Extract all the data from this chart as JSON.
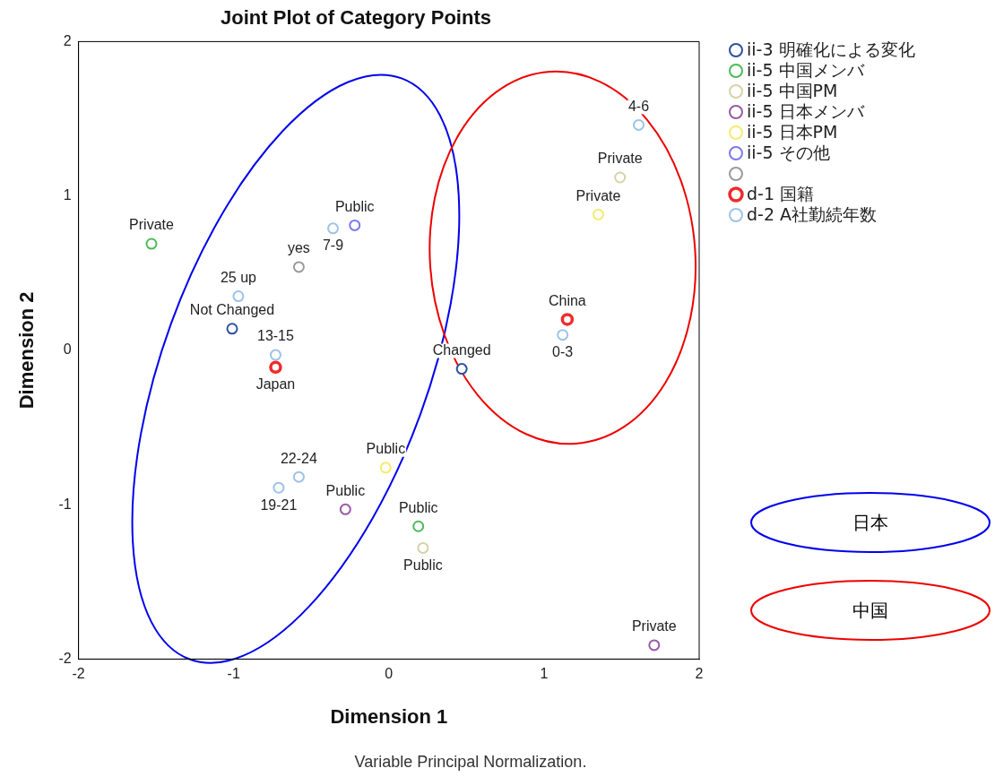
{
  "chart_data": {
    "type": "scatter",
    "title": "Joint Plot of Category Points",
    "xlabel": "Dimension 1",
    "ylabel": "Dimension 2",
    "xlim": [
      -2,
      2
    ],
    "xticks": [
      -2,
      -1,
      0,
      1,
      2
    ],
    "ylim": [
      -2,
      2
    ],
    "yticks": [
      -2,
      -1,
      0,
      1,
      2
    ],
    "grid": false,
    "legend": "top right",
    "marker": "circle",
    "series": [
      {
        "name": "ii-3 明確化による変化",
        "color": "#2e4fa3",
        "x": [
          -1.01,
          0.47
        ],
        "values": [
          0.14,
          -0.12
        ]
      },
      {
        "name": "ii-5 中国メンバ",
        "color": "#4cbb5a",
        "x": [
          -1.53,
          0.19
        ],
        "values": [
          0.69,
          -1.14
        ]
      },
      {
        "name": "ii-5 中国PM",
        "color": "#d6d2a8",
        "x": [
          1.49,
          0.22
        ],
        "values": [
          1.12,
          -1.28
        ]
      },
      {
        "name": "ii-5 日本メンバ",
        "color": "#9a5aa6",
        "x": [
          -0.28,
          1.71
        ],
        "values": [
          -1.03,
          -1.91
        ]
      },
      {
        "name": "ii-5 日本PM",
        "color": "#f2ec70",
        "x": [
          1.35,
          -0.02
        ],
        "values": [
          0.88,
          -0.76
        ]
      },
      {
        "name": "ii-5 その他",
        "color": "#7a7af0",
        "x": [
          -0.22
        ],
        "values": [
          0.81
        ]
      },
      {
        "color": "#9a9a9a",
        "x": [
          -0.58
        ],
        "values": [
          0.54
        ]
      },
      {
        "name": "d-1 国籍",
        "color": "#ee2b2b",
        "x": [
          -0.73,
          1.15
        ],
        "values": [
          -0.11,
          0.2
        ]
      },
      {
        "name": "d-2 A社勤続年数",
        "color": "#9ec3e6",
        "x": [
          1.61,
          -0.36,
          -0.97,
          -0.73,
          -0.58,
          -0.71,
          1.12
        ],
        "values": [
          1.46,
          0.79,
          0.35,
          -0.03,
          -0.82,
          -0.89,
          0.1
        ]
      }
    ],
    "annotations": [
      {
        "text": "Not Changed",
        "x": -1.01,
        "y": 0.14
      },
      {
        "text": "Changed",
        "x": 0.47,
        "y": -0.12
      },
      {
        "text": "Private",
        "x": -1.53,
        "y": 0.69
      },
      {
        "text": "Public",
        "x": 0.19,
        "y": -1.14
      },
      {
        "text": "Private",
        "x": 1.49,
        "y": 1.12
      },
      {
        "text": "Public",
        "x": 0.22,
        "y": -1.28
      },
      {
        "text": "Public",
        "x": -0.28,
        "y": -1.03
      },
      {
        "text": "Private",
        "x": 1.71,
        "y": -1.91
      },
      {
        "text": "Private",
        "x": 1.35,
        "y": 0.88
      },
      {
        "text": "Public",
        "x": -0.02,
        "y": -0.76
      },
      {
        "text": "Public",
        "x": -0.22,
        "y": 0.81
      },
      {
        "text": "yes",
        "x": -0.58,
        "y": 0.54
      },
      {
        "text": "Japan",
        "x": -0.73,
        "y": -0.11
      },
      {
        "text": "China",
        "x": 1.15,
        "y": 0.2
      },
      {
        "text": "4-6",
        "x": 1.61,
        "y": 1.46
      },
      {
        "text": "7-9",
        "x": -0.36,
        "y": 0.79
      },
      {
        "text": "25 up",
        "x": -0.97,
        "y": 0.35
      },
      {
        "text": "13-15",
        "x": -0.73,
        "y": -0.03
      },
      {
        "text": "22-24",
        "x": -0.58,
        "y": -0.82
      },
      {
        "text": "19-21",
        "x": -0.71,
        "y": -0.89
      },
      {
        "text": "0-3",
        "x": 1.12,
        "y": 0.1
      },
      "日本",
      "中国",
      "Variable Principal Normalization."
    ]
  }
}
